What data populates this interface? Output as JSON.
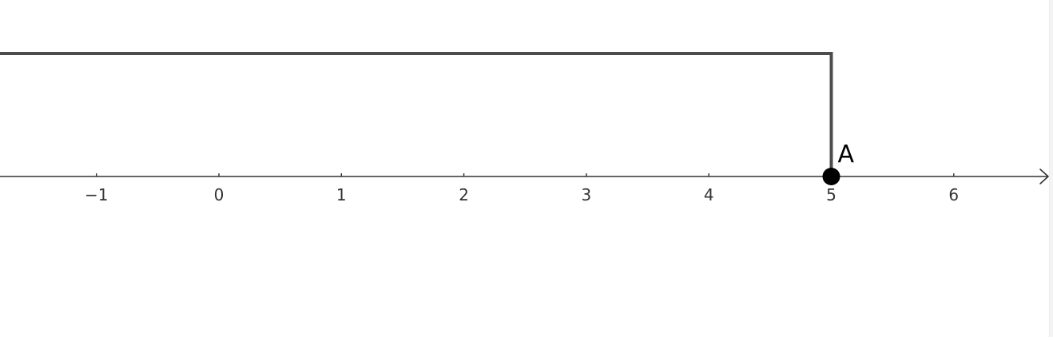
{
  "number_line": {
    "axis": {
      "x_range": [
        -1.8,
        6.8
      ],
      "tick_values": [
        -1,
        0,
        1,
        2,
        3,
        4,
        5,
        6
      ],
      "tick_labels": [
        "−1",
        "0",
        "1",
        "2",
        "3",
        "4",
        "5",
        "6"
      ],
      "color": "#333333"
    },
    "point": {
      "label": "A",
      "value": 5,
      "color": "#000000"
    },
    "ray": {
      "from": 5,
      "direction": "left",
      "color": "#4d4d4d"
    }
  }
}
